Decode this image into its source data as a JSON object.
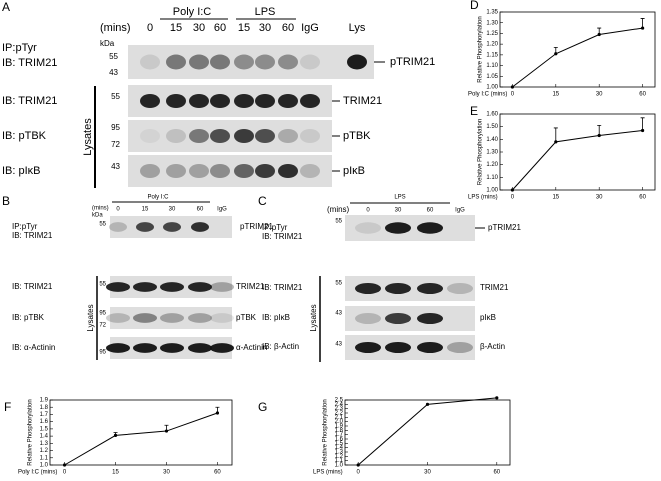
{
  "figure": {
    "A": {
      "letter": "A",
      "mins": "(mins)",
      "groups": [
        "Poly I:C",
        "LPS"
      ],
      "lanes": [
        "0",
        "15",
        "30",
        "60",
        "15",
        "30",
        "60",
        "IgG",
        "Lys"
      ],
      "ip": "IP:pTyr",
      "ib": [
        "IB: TRIM21",
        "IB: TRIM21",
        "IB: pTBK",
        "IB: pIκB"
      ],
      "kda": "kDa",
      "markers": [
        "55",
        "43",
        "55",
        "95",
        "72",
        "43"
      ],
      "bands": [
        "pTRIM21",
        "TRIM21",
        "pTBK",
        "pIκB"
      ],
      "lysates": "Lysates"
    },
    "B": {
      "letter": "B",
      "mins": "(mins)",
      "group": "Poly I:C",
      "kda": "kDa",
      "lanes": [
        "0",
        "15",
        "30",
        "60",
        "IgG"
      ],
      "ip": "IP:pTyr",
      "ib": [
        "IB: TRIM21",
        "IB: TRIM21",
        "IB: pTBK",
        "IB: α-Actinin"
      ],
      "markers": [
        "55",
        "55",
        "95",
        "72",
        "95"
      ],
      "bands": [
        "pTRIM21",
        "TRIM21",
        "pTBK",
        "α-Actinin"
      ],
      "lysates": "Lysates"
    },
    "C": {
      "letter": "C",
      "mins": "(mins)",
      "group": "LPS",
      "lanes": [
        "0",
        "30",
        "60",
        "IgG"
      ],
      "ip": "IP:pTyr",
      "ib": [
        "IB: TRIM21",
        "IB: TRIM21",
        "IB: pIκB",
        "IB: β-Actin"
      ],
      "markers": [
        "55",
        "55",
        "43",
        "43"
      ],
      "bands": [
        "pTRIM21",
        "TRIM21",
        "pIκB",
        "β-Actin"
      ],
      "lysates": "Lysates"
    }
  },
  "chart_data": [
    {
      "type": "line",
      "label": "D",
      "xlabel": "Poly I:C (mins)",
      "ylabel": "Relative Phosphorylation",
      "color": "#000000",
      "categories": [
        "0",
        "15",
        "30",
        "60"
      ],
      "values": [
        1.0,
        1.155,
        1.245,
        1.275
      ],
      "errors": [
        null,
        0.03,
        0.03,
        0.045
      ],
      "ylim": [
        1.0,
        1.35
      ],
      "yticks": [
        {
          "value": 1.0,
          "label": "1.00"
        },
        {
          "value": 1.05,
          "label": "1.05"
        },
        {
          "value": 1.1,
          "label": "1.10"
        },
        {
          "value": 1.15,
          "label": "1.15"
        },
        {
          "value": 1.2,
          "label": "1.20"
        },
        {
          "value": 1.25,
          "label": "1.25"
        },
        {
          "value": 1.3,
          "label": "1.30"
        },
        {
          "value": 1.35,
          "label": "1.35"
        }
      ]
    },
    {
      "type": "line",
      "label": "E",
      "xlabel": "LPS (mins)",
      "ylabel": "Relative Phosphorylation",
      "color": "#000000",
      "categories": [
        "0",
        "15",
        "30",
        "60"
      ],
      "values": [
        1.0,
        1.38,
        1.43,
        1.47
      ],
      "errors": [
        null,
        0.11,
        0.08,
        0.1
      ],
      "ylim": [
        1.0,
        1.6
      ],
      "yticks": [
        {
          "value": 1.0,
          "label": "1.00"
        },
        {
          "value": 1.1,
          "label": "1.10"
        },
        {
          "value": 1.2,
          "label": "1.20"
        },
        {
          "value": 1.3,
          "label": "1.30"
        },
        {
          "value": 1.4,
          "label": "1.40"
        },
        {
          "value": 1.5,
          "label": "1.50"
        },
        {
          "value": 1.6,
          "label": "1.60"
        }
      ]
    },
    {
      "type": "line",
      "label": "F",
      "xlabel": "Poly I:C (mins)",
      "ylabel": "Relative Phosphorylation",
      "color": "#000000",
      "categories": [
        "0",
        "15",
        "30",
        "60"
      ],
      "values": [
        1.0,
        1.41,
        1.47,
        1.72
      ],
      "errors": [
        null,
        0.04,
        0.08,
        0.08
      ],
      "ylim": [
        1.0,
        1.9
      ],
      "yticks": [
        {
          "value": 1.0,
          "label": "1.0"
        },
        {
          "value": 1.1,
          "label": "1.1"
        },
        {
          "value": 1.2,
          "label": "1.2"
        },
        {
          "value": 1.3,
          "label": "1.3"
        },
        {
          "value": 1.4,
          "label": "1.4"
        },
        {
          "value": 1.5,
          "label": "1.5"
        },
        {
          "value": 1.6,
          "label": "1.6"
        },
        {
          "value": 1.7,
          "label": "1.7"
        },
        {
          "value": 1.8,
          "label": "1.8"
        },
        {
          "value": 1.9,
          "label": "1.9"
        }
      ]
    },
    {
      "type": "line",
      "label": "G",
      "xlabel": "LPS (mins)",
      "ylabel": "Relative Phosphorylation",
      "color": "#000000",
      "categories": [
        "0",
        "30",
        "60"
      ],
      "values": [
        1.0,
        2.4,
        2.55
      ],
      "errors": [
        null,
        null,
        null
      ],
      "ylim": [
        1.0,
        2.5
      ],
      "yticks": [
        {
          "value": 1.0,
          "label": "1.0"
        },
        {
          "value": 1.1,
          "label": "1.1"
        },
        {
          "value": 1.2,
          "label": "1.2"
        },
        {
          "value": 1.3,
          "label": "1.3"
        },
        {
          "value": 1.4,
          "label": "1.4"
        },
        {
          "value": 1.5,
          "label": "1.5"
        },
        {
          "value": 1.6,
          "label": "1.6"
        },
        {
          "value": 1.7,
          "label": "1.7"
        },
        {
          "value": 1.8,
          "label": "1.8"
        },
        {
          "value": 1.9,
          "label": "1.9"
        },
        {
          "value": 2.0,
          "label": "2.0"
        },
        {
          "value": 2.1,
          "label": "2.1"
        },
        {
          "value": 2.2,
          "label": "2.2"
        },
        {
          "value": 2.3,
          "label": "2.3"
        },
        {
          "value": 2.4,
          "label": "2.4"
        },
        {
          "value": 2.5,
          "label": "2.5"
        }
      ]
    }
  ]
}
